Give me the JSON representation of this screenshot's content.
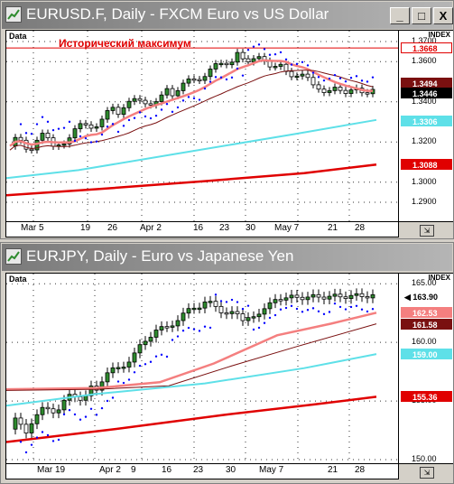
{
  "colors": {
    "ma_fast": "#f47f7f",
    "ma_mid": "#7a1010",
    "ma_cyan": "#5ee0e8",
    "ma_slow": "#e00000",
    "psar": "#0000ff",
    "candle_up": "#2e8b2e",
    "candle_down": "#ffffff"
  },
  "window_buttons": {
    "minimize": "_",
    "maximize": "□",
    "close": "X"
  },
  "chart1": {
    "title": "EURUSD.F, Daily - FXCM Euro vs US Dollar",
    "data_label": "Data",
    "index_label": "INDEX",
    "annotation": "Исторический максимум",
    "yticks": [
      "1.3700",
      "1.3600",
      "1.3400",
      "1.3200",
      "1.3000",
      "1.2900"
    ],
    "yvals": [
      1.37,
      1.36,
      1.34,
      1.32,
      1.3,
      1.29
    ],
    "price_boxes": [
      {
        "text": "1.3668",
        "value": 1.3668,
        "bg": "#ffffff",
        "fg": "#e00000",
        "border": "#e00000"
      },
      {
        "text": "1.3494",
        "value": 1.3494,
        "bg": "#7a1010",
        "fg": "#ffffff",
        "border": "#7a1010"
      },
      {
        "text": "1.3446",
        "value": 1.3446,
        "bg": "#000000",
        "fg": "#ffffff",
        "border": "#000000"
      },
      {
        "text": "1.3306",
        "value": 1.3306,
        "bg": "#5ee0e8",
        "fg": "#ffffff",
        "border": "#5ee0e8"
      },
      {
        "text": "1.3088",
        "value": 1.3088,
        "bg": "#e00000",
        "fg": "#ffffff",
        "border": "#e00000"
      }
    ],
    "xlabels": [
      "Mar 5",
      "19",
      "26",
      "Apr 2",
      "16",
      "23",
      "30",
      "May 7",
      "21",
      "28"
    ]
  },
  "chart2": {
    "title": "EURJPY, Daily - Euro vs Japanese Yen",
    "data_label": "Data",
    "index_label": "INDEX",
    "yticks": [
      "165.00",
      "160.00",
      "155.00",
      "150.00"
    ],
    "yvals": [
      165,
      160,
      155,
      150
    ],
    "price_boxes": [
      {
        "text": "163.90",
        "value": 163.9,
        "bg": "#ffffff",
        "fg": "#000000",
        "border": "#ffffff",
        "arrow": true
      },
      {
        "text": "162.53",
        "value": 162.53,
        "bg": "#f47f7f",
        "fg": "#ffffff",
        "border": "#f47f7f"
      },
      {
        "text": "161.58",
        "value": 161.58,
        "bg": "#7a1010",
        "fg": "#ffffff",
        "border": "#7a1010"
      },
      {
        "text": "159.00",
        "value": 159.0,
        "bg": "#5ee0e8",
        "fg": "#ffffff",
        "border": "#5ee0e8"
      },
      {
        "text": "155.36",
        "value": 155.36,
        "bg": "#e00000",
        "fg": "#ffffff",
        "border": "#e00000"
      }
    ],
    "xlabels": [
      "Mar 19",
      "Apr 2",
      "9",
      "16",
      "23",
      "30",
      "May 7",
      "21",
      "28"
    ]
  }
}
